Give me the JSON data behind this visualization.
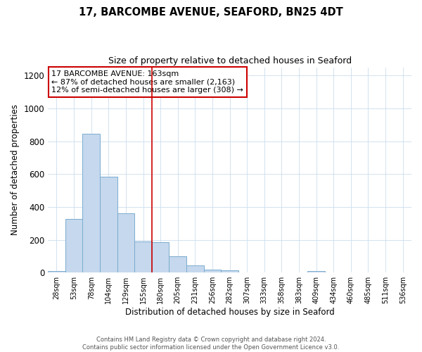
{
  "title": "17, BARCOMBE AVENUE, SEAFORD, BN25 4DT",
  "subtitle": "Size of property relative to detached houses in Seaford",
  "xlabel": "Distribution of detached houses by size in Seaford",
  "ylabel": "Number of detached properties",
  "bar_values": [
    10,
    325,
    845,
    585,
    360,
    190,
    185,
    100,
    45,
    20,
    15,
    0,
    0,
    0,
    0,
    10,
    0,
    0,
    0,
    0,
    0
  ],
  "bin_labels": [
    "28sqm",
    "53sqm",
    "78sqm",
    "104sqm",
    "129sqm",
    "155sqm",
    "180sqm",
    "205sqm",
    "231sqm",
    "256sqm",
    "282sqm",
    "307sqm",
    "333sqm",
    "358sqm",
    "383sqm",
    "409sqm",
    "434sqm",
    "460sqm",
    "485sqm",
    "511sqm",
    "536sqm"
  ],
  "bar_color": "#c5d8ed",
  "bar_edgecolor": "#7aacce",
  "bar_linewidth": 0.7,
  "vline_x": 6.0,
  "vline_color": "#cc0000",
  "vline_linewidth": 1.2,
  "ylim": [
    0,
    1250
  ],
  "yticks": [
    0,
    200,
    400,
    600,
    800,
    1000,
    1200
  ],
  "grid_color": "#ccddee",
  "background_color": "#ffffff",
  "annotation_title": "17 BARCOMBE AVENUE: 163sqm",
  "annotation_line1": "← 87% of detached houses are smaller (2,163)",
  "annotation_line2": "12% of semi-detached houses are larger (308) →",
  "annotation_box_color": "#ffffff",
  "annotation_box_edgecolor": "#cc0000",
  "footer_line1": "Contains HM Land Registry data © Crown copyright and database right 2024.",
  "footer_line2": "Contains public sector information licensed under the Open Government Licence v3.0."
}
